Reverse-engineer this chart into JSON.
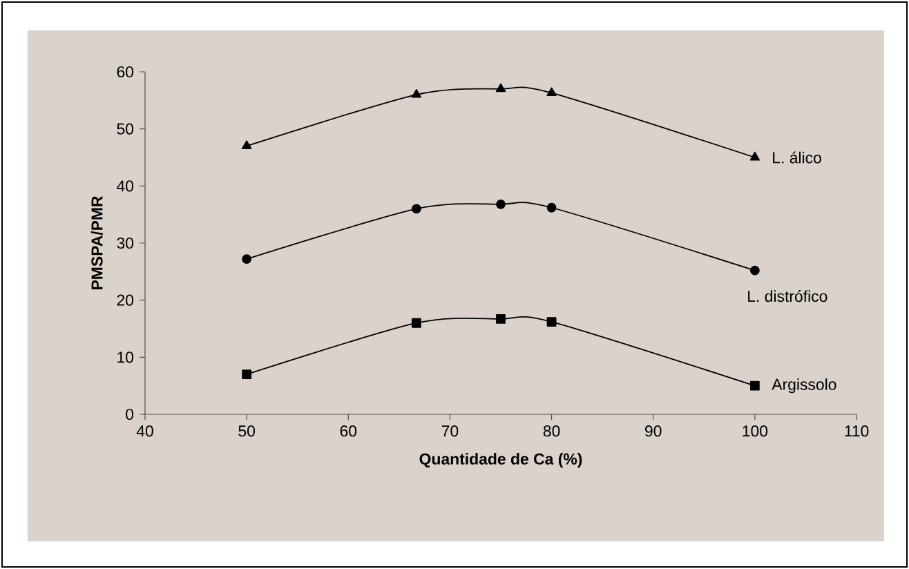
{
  "chart_data": {
    "type": "line",
    "xlabel": "Quantidade de Ca (%)",
    "ylabel": "PMSPA/PMR",
    "x": [
      50,
      66.7,
      75,
      80,
      100
    ],
    "series": [
      {
        "name": "L. álico",
        "color": "#000000",
        "marker": "triangle",
        "values": [
          47,
          56,
          57,
          56.3,
          45
        ]
      },
      {
        "name": "L. distrófico",
        "color": "#000000",
        "marker": "circle",
        "values": [
          27.2,
          36,
          36.8,
          36.2,
          25.2
        ]
      },
      {
        "name": "Argissolo",
        "color": "#000000",
        "marker": "square",
        "values": [
          7,
          16,
          16.7,
          16.2,
          5
        ]
      }
    ],
    "xlim": [
      40,
      110
    ],
    "xticks": [
      40,
      50,
      60,
      70,
      80,
      90,
      100,
      110
    ],
    "ylim": [
      0,
      60
    ],
    "yticks": [
      0,
      10,
      20,
      30,
      40,
      50,
      60
    ],
    "grid": false,
    "legend": false,
    "line_style": "solid"
  }
}
